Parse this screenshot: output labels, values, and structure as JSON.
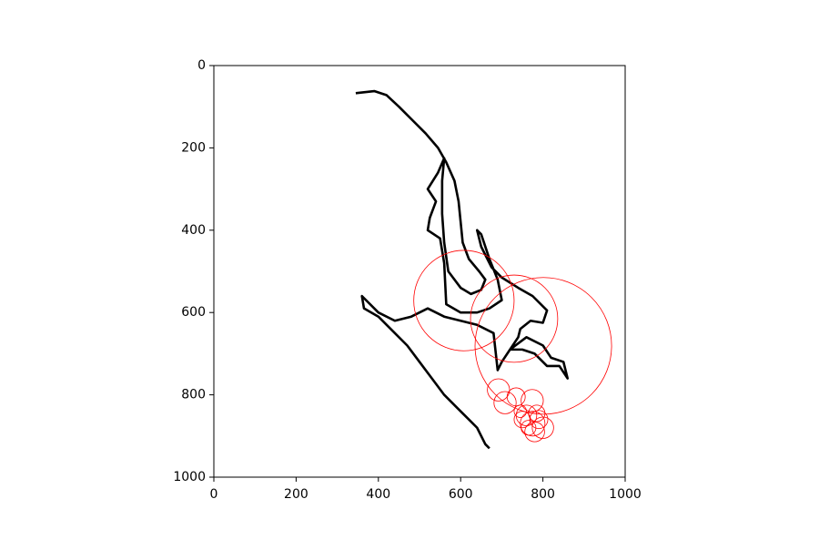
{
  "chart_data": {
    "type": "line",
    "xlim": [
      0,
      1000
    ],
    "ylim": [
      1000,
      0
    ],
    "xticks": [
      0,
      200,
      400,
      600,
      800,
      1000
    ],
    "yticks": [
      0,
      200,
      400,
      600,
      800,
      1000
    ],
    "series": [
      {
        "color": "#000000",
        "x": [
          345,
          390,
          420,
          450,
          480,
          515,
          545,
          565,
          585,
          595,
          600,
          605,
          620,
          645,
          660,
          650,
          625,
          600,
          570,
          560,
          555,
          555,
          560,
          545,
          520,
          540,
          525,
          520,
          550,
          560,
          565,
          600,
          640,
          670,
          700,
          690,
          670,
          650,
          640,
          650,
          675,
          700,
          740,
          775,
          810,
          800,
          770,
          745,
          740,
          720,
          750,
          780,
          810,
          840,
          860,
          850,
          820,
          800,
          760,
          720,
          700,
          690,
          680,
          640,
          600,
          560,
          520,
          480,
          440,
          400,
          370,
          360,
          365,
          400,
          440,
          470,
          500,
          530,
          560,
          590,
          620,
          640,
          660,
          670
        ],
        "y": [
          67,
          62,
          72,
          100,
          130,
          165,
          200,
          235,
          280,
          330,
          380,
          430,
          470,
          500,
          520,
          545,
          555,
          540,
          500,
          430,
          360,
          280,
          225,
          260,
          300,
          330,
          370,
          400,
          420,
          480,
          580,
          600,
          600,
          590,
          570,
          520,
          470,
          410,
          400,
          440,
          490,
          515,
          540,
          560,
          595,
          625,
          620,
          640,
          660,
          690,
          690,
          700,
          730,
          730,
          760,
          720,
          710,
          680,
          660,
          690,
          720,
          740,
          650,
          630,
          620,
          610,
          590,
          610,
          620,
          600,
          570,
          560,
          590,
          610,
          650,
          680,
          720,
          760,
          800,
          830,
          860,
          880,
          920,
          930
        ]
      }
    ],
    "circles": {
      "color": "#ff0000",
      "x": [
        608,
        730,
        801,
        692,
        708,
        735,
        774,
        760,
        750,
        775,
        790,
        765,
        780,
        800,
        745,
        785
      ],
      "y": [
        571,
        615,
        681,
        788,
        819,
        805,
        814,
        850,
        860,
        870,
        860,
        880,
        890,
        880,
        840,
        845
      ],
      "r": [
        122,
        106,
        166,
        27,
        27,
        22,
        27,
        25,
        20,
        30,
        22,
        18,
        24,
        26,
        15,
        20
      ]
    }
  }
}
